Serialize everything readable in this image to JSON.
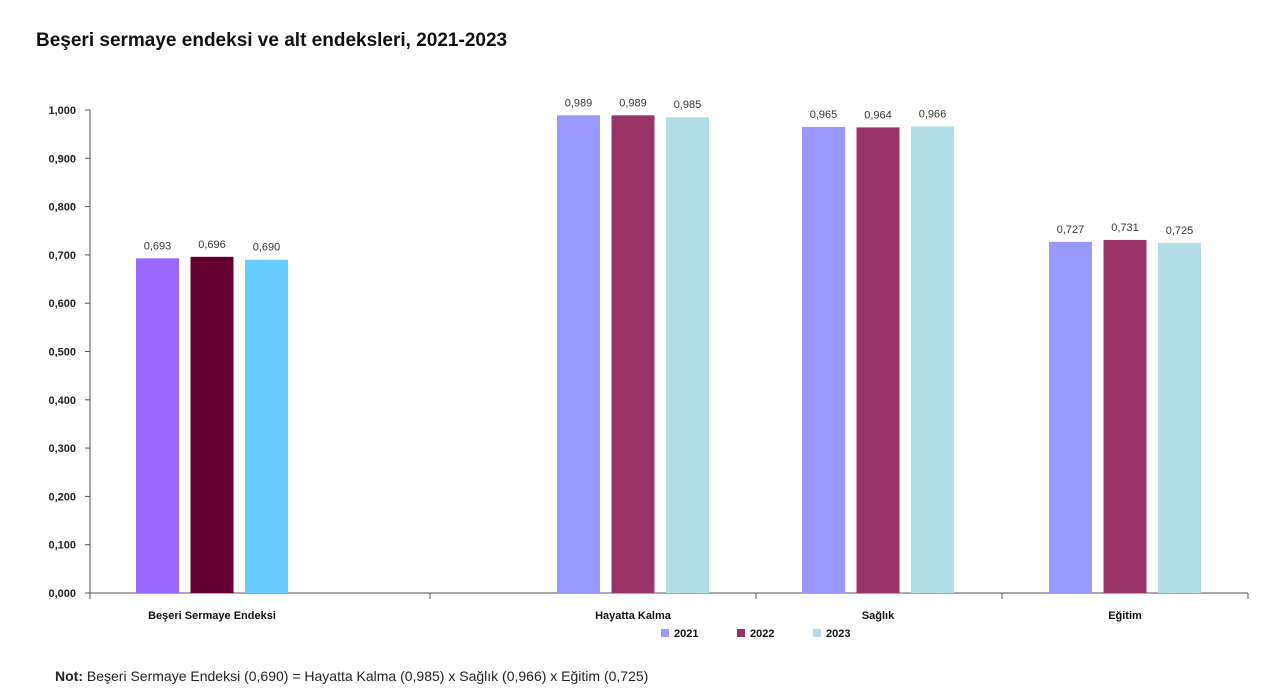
{
  "title": "Beşeri sermaye endeksi ve alt endeksleri, 2021-2023",
  "note": {
    "label": "Not:",
    "text": " Beşeri Sermaye Endeksi (0,690) = Hayatta Kalma (0,985) x Sağlık (0,966) x Eğitim (0,725)"
  },
  "chart_data": {
    "type": "bar",
    "categories": [
      "Beşeri Sermaye Endeksi",
      "Hayatta Kalma",
      "Sağlık",
      "Eğitim"
    ],
    "series": [
      {
        "name": "2021",
        "values": [
          0.693,
          0.989,
          0.965,
          0.727
        ],
        "labels": [
          "0,693",
          "0,989",
          "0,965",
          "0,727"
        ]
      },
      {
        "name": "2022",
        "values": [
          0.696,
          0.989,
          0.964,
          0.731
        ],
        "labels": [
          "0,696",
          "0,989",
          "0,964",
          "0,731"
        ]
      },
      {
        "name": "2023",
        "values": [
          0.69,
          0.985,
          0.966,
          0.725
        ],
        "labels": [
          "0,690",
          "0,985",
          "0,966",
          "0,725"
        ]
      }
    ],
    "category_colors": [
      [
        "#9966ff",
        "#660033",
        "#66ccff"
      ],
      [
        "#9999ff",
        "#993366",
        "#b3dde6"
      ],
      [
        "#9999ff",
        "#993366",
        "#b3dde6"
      ],
      [
        "#9999ff",
        "#993366",
        "#b3dde6"
      ]
    ],
    "legend_colors": [
      "#9999ff",
      "#993366",
      "#b3dde6"
    ],
    "yticks": [
      "0,000",
      "0,100",
      "0,200",
      "0,300",
      "0,400",
      "0,500",
      "0,600",
      "0,700",
      "0,800",
      "0,900",
      "1,000"
    ],
    "ylim": [
      0,
      1
    ],
    "grid": false,
    "legend_position": "bottom"
  }
}
